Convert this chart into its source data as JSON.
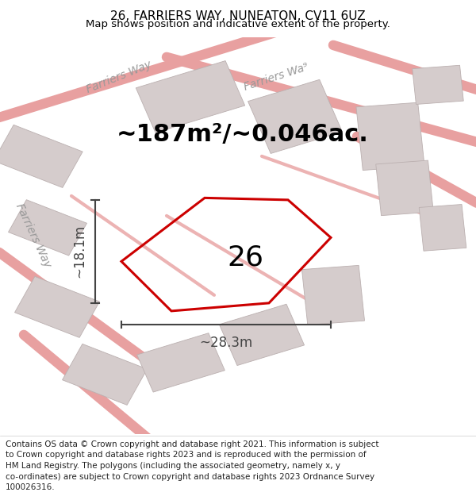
{
  "title": "26, FARRIERS WAY, NUNEATON, CV11 6UZ",
  "subtitle": "Map shows position and indicative extent of the property.",
  "area_text": "~187m²/~0.046ac.",
  "number_label": "26",
  "dim_width": "~28.3m",
  "dim_height": "~18.1m",
  "footer_lines": [
    "Contains OS data © Crown copyright and database right 2021. This information is subject",
    "to Crown copyright and database rights 2023 and is reproduced with the permission of",
    "HM Land Registry. The polygons (including the associated geometry, namely x, y",
    "co-ordinates) are subject to Crown copyright and database rights 2023 Ordnance Survey",
    "100026316."
  ],
  "map_bg": "#f5eded",
  "road_color": "#e8a0a0",
  "building_color": "#d5cccc",
  "building_ec": "#bbb0b0",
  "plot_outline_color": "#cc0000",
  "dim_line_color": "#444444",
  "road_label_color": "#999999",
  "title_color": "#000000",
  "footer_color": "#222222",
  "number_color": "#000000",
  "area_text_color": "#000000",
  "figsize": [
    6.0,
    6.25
  ],
  "dpi": 100,
  "title_fontsize": 11,
  "subtitle_fontsize": 9.5,
  "area_fontsize": 22,
  "number_fontsize": 26,
  "dim_fontsize": 12,
  "footer_fontsize": 7.5,
  "road_label_fontsize": 10
}
